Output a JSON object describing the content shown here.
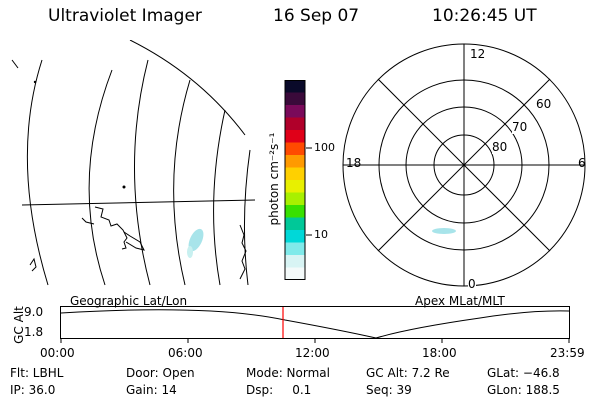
{
  "header": {
    "instrument": "Ultraviolet Imager",
    "date": "16 Sep 07",
    "time": "10:26:45 UT"
  },
  "colorbar": {
    "unit_label": "photon cm⁻²s⁻¹",
    "ticks": [
      "100",
      "10"
    ],
    "colors": [
      "#0a0a2a",
      "#3a0a3a",
      "#7a0a5a",
      "#b0002a",
      "#e00018",
      "#ff4a00",
      "#ff9a00",
      "#ffd000",
      "#e8f000",
      "#a8f000",
      "#38e000",
      "#00c898",
      "#00d8d8",
      "#80eaea",
      "#d8f4f4",
      "#f4fafa"
    ]
  },
  "geo_map": {
    "label": "Geographic Lat/Lon"
  },
  "polar_plot": {
    "label": "Apex MLat/MLT",
    "mlt_labels": {
      "top": "12",
      "left": "18",
      "right": "6",
      "bottom": "0"
    },
    "lat_labels": [
      "60",
      "70",
      "80"
    ]
  },
  "altitude_plot": {
    "axis_label": "GC Alt",
    "y_ticks": [
      "9.0",
      "1.8"
    ],
    "x_ticks": [
      "00:00",
      "06:00",
      "12:00",
      "18:00",
      "23:59"
    ]
  },
  "info": {
    "row1": {
      "flt": "Flt: LBHL",
      "door": "Door: Open",
      "mode": "Mode: Normal",
      "gc_alt": "GC Alt: 7.2 Re",
      "glat": "GLat: −46.8"
    },
    "row2": {
      "ip": "IP: 36.0",
      "gain": "Gain: 14",
      "dsp": "Dsp:     0.1",
      "seq": "Seq: 39",
      "glon": "GLon: 188.5"
    }
  }
}
